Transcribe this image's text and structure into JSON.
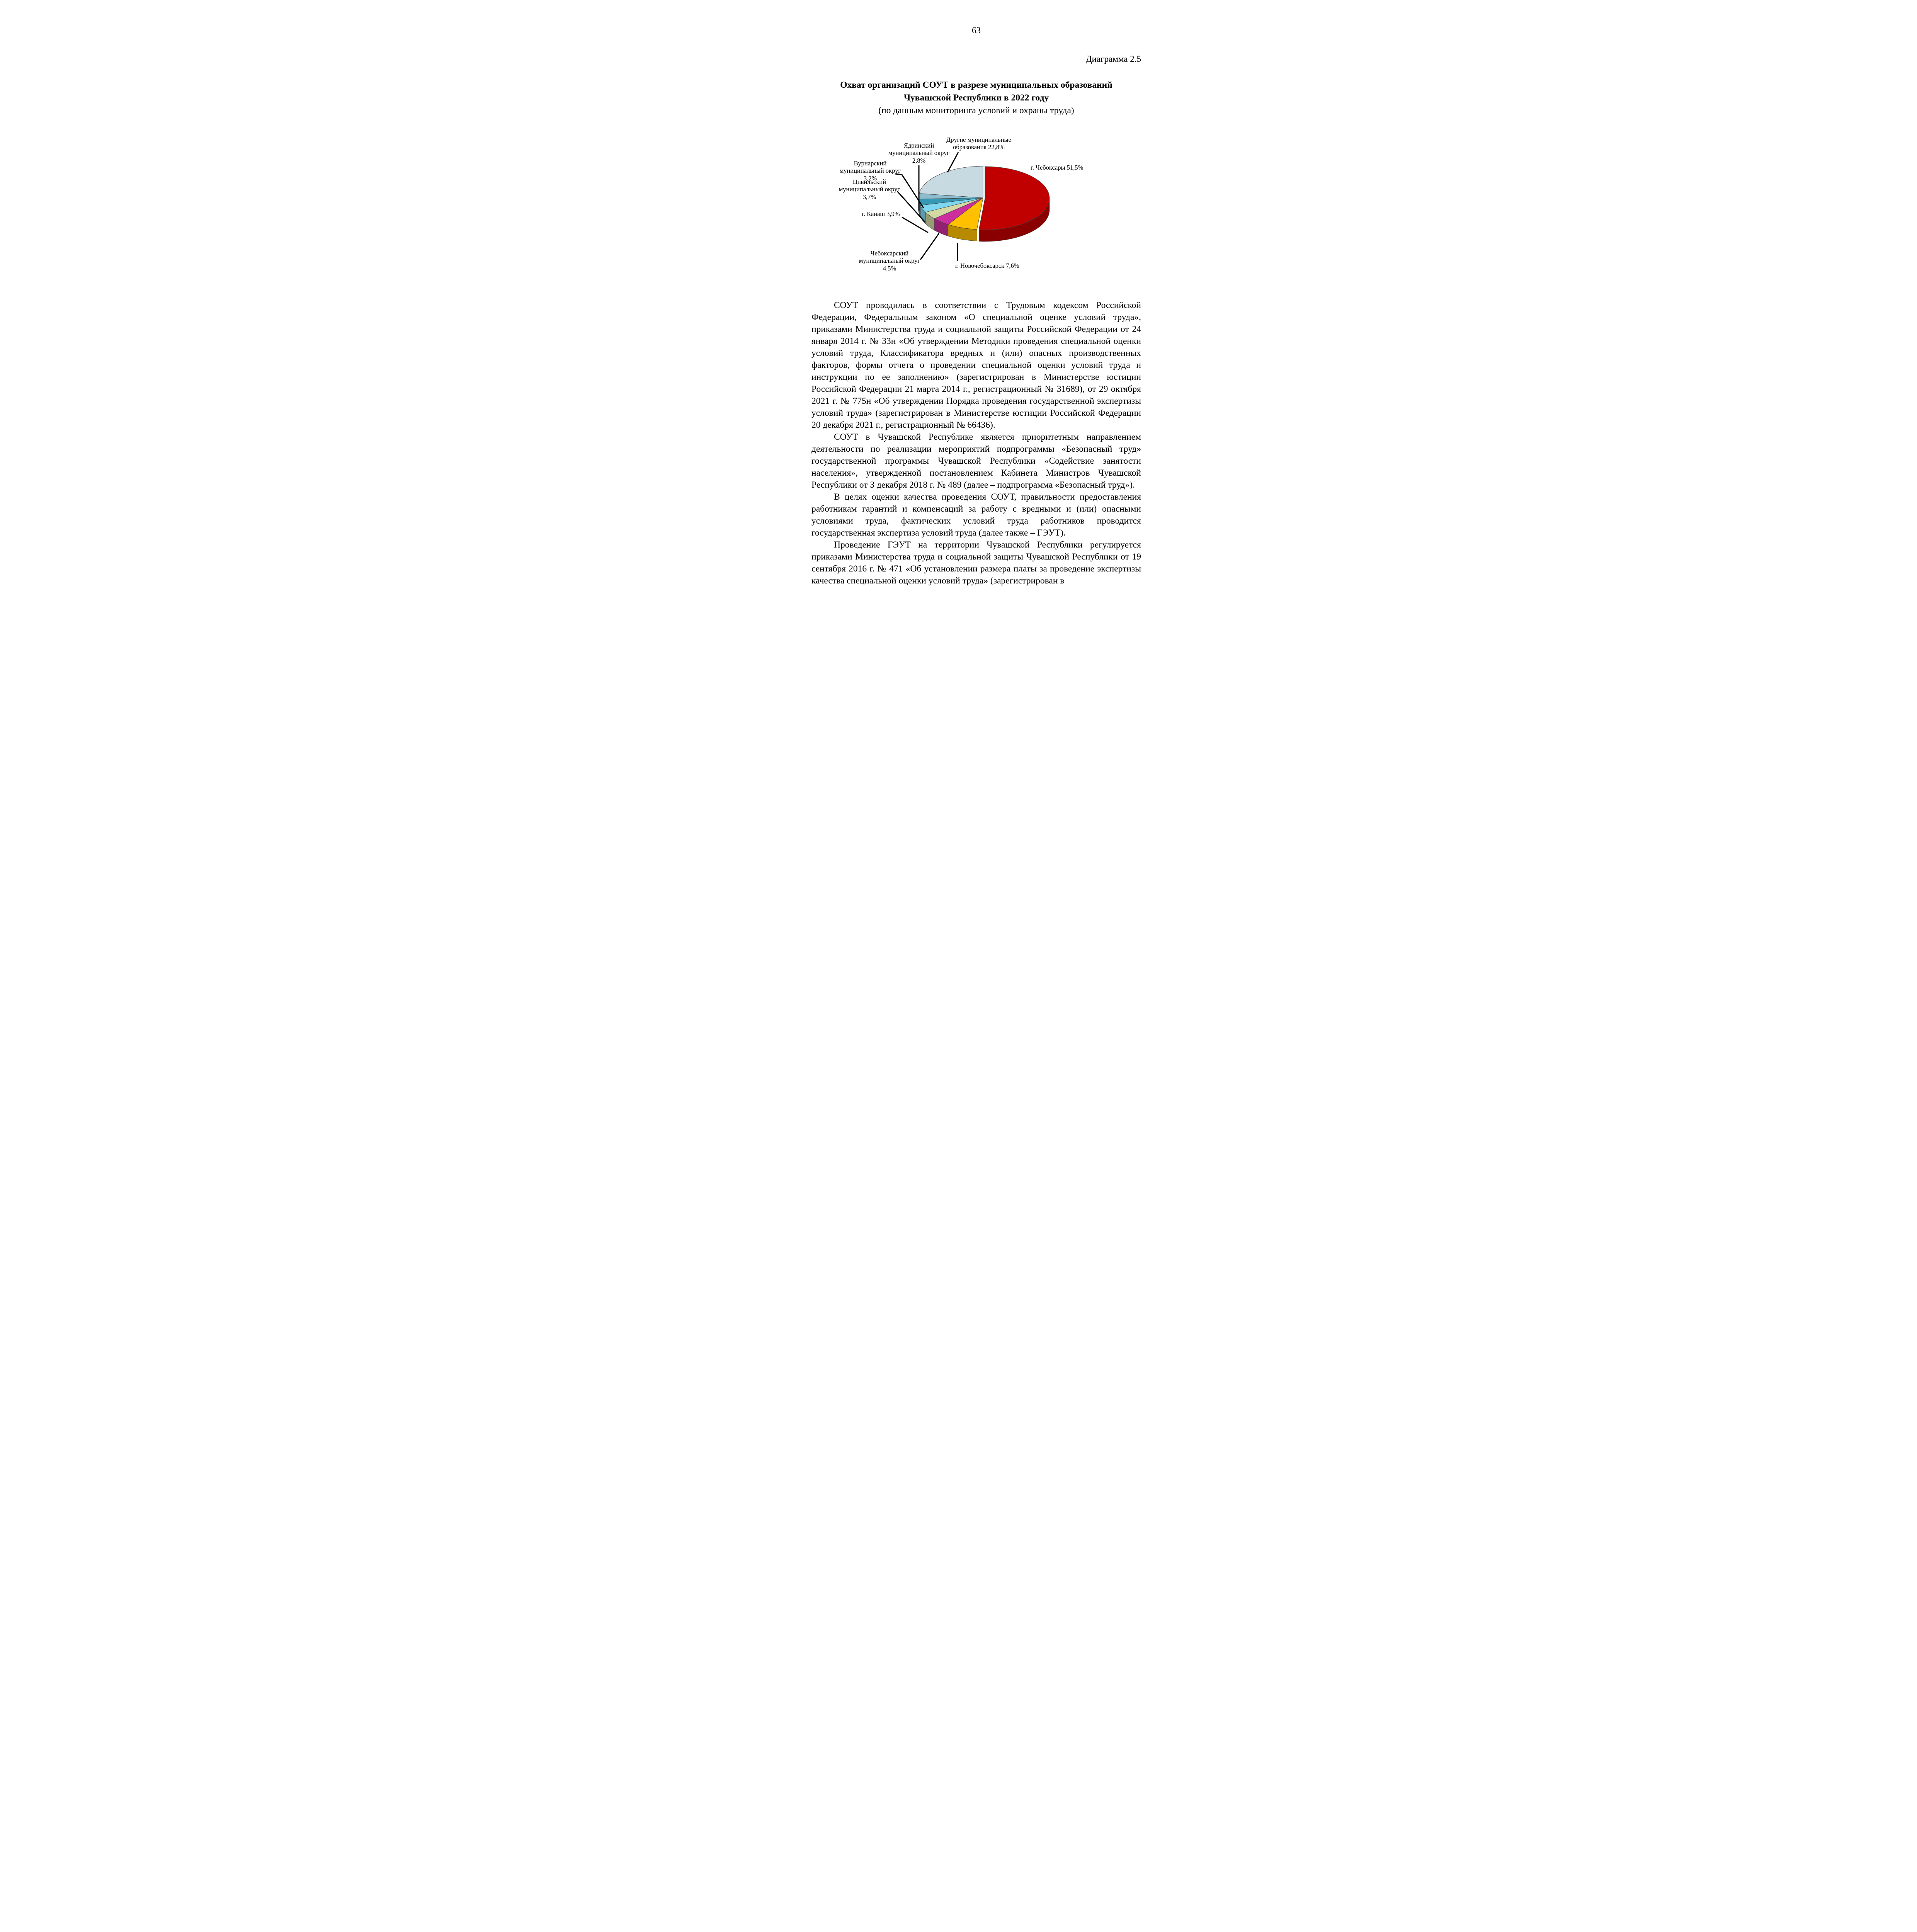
{
  "header": {
    "page_number": "63",
    "figure_label": "Диаграмма 2.5",
    "title_line1": "Охват организаций СОУТ в разрезе муниципальных образований",
    "title_line2": "Чувашской Республики в 2022 году",
    "subtitle": "(по данным мониторинга условий и охраны труда)"
  },
  "chart_data": {
    "type": "pie",
    "effect": "3d",
    "title": "Охват организаций СОУТ в разрезе муниципальных образований Чувашской Республики в 2022 году",
    "subtitle": "(по данным мониторинга условий и охраны труда)",
    "unit": "%",
    "decimal_separator": ",",
    "start_angle_deg": 0,
    "direction": "clockwise",
    "legend_position": "none",
    "slices": [
      {
        "label": "г. Чебоксары",
        "value": 51.5,
        "display_label": "г. Чебоксары 51,5%",
        "color": "#C00000"
      },
      {
        "label": "г. Новочебоксарск",
        "value": 7.6,
        "display_label": "г. Новочебоксарск 7,6%",
        "color": "#FFC000"
      },
      {
        "label": "Чебоксарский муниципальный округ",
        "value": 4.5,
        "display_label": "Чебоксарский муниципальный округ 4,5%",
        "color": "#CC2E9E"
      },
      {
        "label": "г. Канаш",
        "value": 3.9,
        "display_label": "г. Канаш 3,9%",
        "color": "#D2D9A2"
      },
      {
        "label": "Цивильский муниципальный округ",
        "value": 3.7,
        "display_label": "Цивильский муниципальный округ 3,7%",
        "color": "#7ED7F0"
      },
      {
        "label": "Вурнарский муниципальный округ",
        "value": 3.2,
        "display_label": "Вурнарский муниципальный округ 3,2%",
        "color": "#3599B5"
      },
      {
        "label": "Ядринский муниципальный округ",
        "value": 2.8,
        "display_label": "Ядринский муниципальный округ 2,8%",
        "color": "#8CBCCE"
      },
      {
        "label": "Другие муниципальные образования",
        "value": 22.8,
        "display_label": "Другие муниципальные образования 22,8%",
        "color": "#C7D9E1"
      }
    ]
  },
  "body": {
    "paragraphs": [
      "СОУТ проводилась в соответствии с Трудовым кодексом Российской Федерации, Федеральным законом «О специальной оценке условий труда», приказами Министерства труда и социальной защиты Российской Федерации от 24 января 2014 г. № 33н «Об утверждении Методики проведения специальной оценки условий труда, Классификатора вредных и (или) опасных производственных факторов, формы отчета о проведении специальной оценки условий труда и инструкции по ее заполнению» (зарегистрирован в Министерстве юстиции Российской Федерации 21 марта 2014 г., регистрационный № 31689), от 29 октября 2021 г. № 775н «Об утверждении Порядка проведения государственной экспертизы условий труда» (зарегистрирован в Министерстве юстиции Российской Федерации 20 декабря 2021 г., регистрационный № 66436).",
      "СОУТ в Чувашской Республике является приоритетным направлением деятельности по реализации мероприятий подпрограммы «Безопасный труд» государственной программы Чувашской Республики «Содействие занятости населения», утвержденной постановлением Кабинета Министров Чувашской Республики от 3 декабря 2018 г. № 489 (далее – подпрограмма «Безопасный труд»).",
      "В целях оценки качества проведения СОУТ, правильности предоставления работникам гарантий и компенсаций за работу с вредными и (или) опасными условиями труда, фактических условий труда работников проводится государственная экспертиза условий труда (далее также – ГЭУТ).",
      "Проведение ГЭУТ на территории Чувашской Республики регулируется приказами Министерства труда и социальной защиты Чувашской Республики от 19 сентября 2016 г. № 471 «Об установлении размера платы за проведение экспертизы качества специальной оценки условий труда» (зарегистрирован в"
    ]
  }
}
